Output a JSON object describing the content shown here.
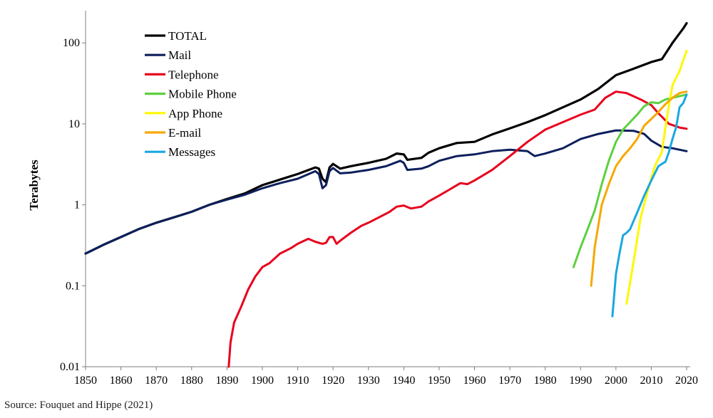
{
  "source": "Source: Fouquet and Hippe (2021)",
  "chart_data": {
    "type": "line",
    "title": "",
    "xlabel": "",
    "ylabel": "Terabytes",
    "yscale": "log",
    "xlim": [
      1850,
      2021
    ],
    "ylim": [
      0.01,
      250
    ],
    "x_ticks": [
      "1850",
      "1860",
      "1870",
      "1880",
      "1890",
      "1900",
      "1910",
      "1920",
      "1930",
      "1940",
      "1950",
      "1960",
      "1970",
      "1980",
      "1990",
      "2000",
      "2010",
      "2020"
    ],
    "y_ticks": [
      "0.01",
      "0.1",
      "1",
      "10",
      "100"
    ],
    "legend_position": "top-left",
    "grid": false,
    "series": [
      {
        "name": "TOTAL",
        "color": "#000000",
        "points": [
          [
            1850,
            0.25
          ],
          [
            1855,
            0.32
          ],
          [
            1860,
            0.4
          ],
          [
            1865,
            0.5
          ],
          [
            1870,
            0.6
          ],
          [
            1875,
            0.7
          ],
          [
            1880,
            0.82
          ],
          [
            1885,
            1.0
          ],
          [
            1890,
            1.18
          ],
          [
            1895,
            1.38
          ],
          [
            1900,
            1.75
          ],
          [
            1905,
            2.05
          ],
          [
            1910,
            2.4
          ],
          [
            1915,
            2.9
          ],
          [
            1916,
            2.8
          ],
          [
            1917,
            2.1
          ],
          [
            1918,
            1.9
          ],
          [
            1919,
            2.9
          ],
          [
            1920,
            3.2
          ],
          [
            1922,
            2.8
          ],
          [
            1925,
            3.0
          ],
          [
            1930,
            3.3
          ],
          [
            1935,
            3.7
          ],
          [
            1938,
            4.3
          ],
          [
            1940,
            4.2
          ],
          [
            1941,
            3.6
          ],
          [
            1945,
            3.8
          ],
          [
            1947,
            4.4
          ],
          [
            1950,
            5.0
          ],
          [
            1955,
            5.8
          ],
          [
            1960,
            6.0
          ],
          [
            1965,
            7.4
          ],
          [
            1970,
            8.8
          ],
          [
            1975,
            10.5
          ],
          [
            1980,
            12.8
          ],
          [
            1985,
            16.0
          ],
          [
            1990,
            20.0
          ],
          [
            1995,
            27.0
          ],
          [
            2000,
            40.0
          ],
          [
            2005,
            48.0
          ],
          [
            2010,
            58.0
          ],
          [
            2013,
            63.0
          ],
          [
            2016,
            100.0
          ],
          [
            2019,
            150.0
          ],
          [
            2020,
            175.0
          ]
        ]
      },
      {
        "name": "Mail",
        "color": "#0d1f5c",
        "points": [
          [
            1850,
            0.25
          ],
          [
            1855,
            0.32
          ],
          [
            1860,
            0.4
          ],
          [
            1865,
            0.5
          ],
          [
            1870,
            0.6
          ],
          [
            1875,
            0.7
          ],
          [
            1880,
            0.82
          ],
          [
            1885,
            1.0
          ],
          [
            1890,
            1.16
          ],
          [
            1895,
            1.33
          ],
          [
            1900,
            1.6
          ],
          [
            1905,
            1.85
          ],
          [
            1910,
            2.1
          ],
          [
            1915,
            2.6
          ],
          [
            1916,
            2.4
          ],
          [
            1917,
            1.6
          ],
          [
            1918,
            1.75
          ],
          [
            1919,
            2.6
          ],
          [
            1920,
            2.85
          ],
          [
            1922,
            2.45
          ],
          [
            1925,
            2.5
          ],
          [
            1930,
            2.7
          ],
          [
            1935,
            3.0
          ],
          [
            1939,
            3.5
          ],
          [
            1940,
            3.3
          ],
          [
            1941,
            2.7
          ],
          [
            1945,
            2.8
          ],
          [
            1947,
            3.0
          ],
          [
            1950,
            3.5
          ],
          [
            1955,
            4.0
          ],
          [
            1960,
            4.2
          ],
          [
            1965,
            4.6
          ],
          [
            1970,
            4.8
          ],
          [
            1975,
            4.6
          ],
          [
            1977,
            4.0
          ],
          [
            1980,
            4.3
          ],
          [
            1985,
            5.0
          ],
          [
            1990,
            6.5
          ],
          [
            1995,
            7.5
          ],
          [
            2000,
            8.3
          ],
          [
            2005,
            8.2
          ],
          [
            2008,
            7.5
          ],
          [
            2010,
            6.2
          ],
          [
            2013,
            5.2
          ],
          [
            2016,
            5.0
          ],
          [
            2020,
            4.6
          ]
        ]
      },
      {
        "name": "Telephone",
        "color": "#e8001c",
        "points": [
          [
            1890.5,
            0.01
          ],
          [
            1891,
            0.02
          ],
          [
            1892,
            0.035
          ],
          [
            1894,
            0.055
          ],
          [
            1896,
            0.09
          ],
          [
            1898,
            0.13
          ],
          [
            1900,
            0.17
          ],
          [
            1902,
            0.19
          ],
          [
            1905,
            0.25
          ],
          [
            1908,
            0.29
          ],
          [
            1910,
            0.33
          ],
          [
            1913,
            0.38
          ],
          [
            1915,
            0.35
          ],
          [
            1917,
            0.33
          ],
          [
            1918,
            0.34
          ],
          [
            1919,
            0.4
          ],
          [
            1920,
            0.4
          ],
          [
            1921,
            0.33
          ],
          [
            1922,
            0.36
          ],
          [
            1925,
            0.45
          ],
          [
            1928,
            0.55
          ],
          [
            1930,
            0.6
          ],
          [
            1933,
            0.7
          ],
          [
            1936,
            0.82
          ],
          [
            1938,
            0.95
          ],
          [
            1940,
            0.98
          ],
          [
            1942,
            0.9
          ],
          [
            1945,
            0.95
          ],
          [
            1947,
            1.1
          ],
          [
            1950,
            1.3
          ],
          [
            1953,
            1.55
          ],
          [
            1956,
            1.85
          ],
          [
            1958,
            1.8
          ],
          [
            1960,
            2.0
          ],
          [
            1965,
            2.7
          ],
          [
            1970,
            4.0
          ],
          [
            1975,
            6.0
          ],
          [
            1980,
            8.5
          ],
          [
            1985,
            10.5
          ],
          [
            1990,
            13.0
          ],
          [
            1994,
            15.0
          ],
          [
            1997,
            21.0
          ],
          [
            2000,
            25.0
          ],
          [
            2003,
            24.0
          ],
          [
            2007,
            20.0
          ],
          [
            2010,
            17.0
          ],
          [
            2012,
            13.5
          ],
          [
            2015,
            10.0
          ],
          [
            2018,
            9.0
          ],
          [
            2020,
            8.7
          ]
        ]
      },
      {
        "name": "Mobile Phone",
        "color": "#5dd040",
        "points": [
          [
            1988,
            0.17
          ],
          [
            1990,
            0.3
          ],
          [
            1992,
            0.5
          ],
          [
            1994,
            0.85
          ],
          [
            1996,
            1.8
          ],
          [
            1998,
            3.5
          ],
          [
            2000,
            6.0
          ],
          [
            2002,
            8.5
          ],
          [
            2004,
            10.5
          ],
          [
            2006,
            13.0
          ],
          [
            2008,
            16.5
          ],
          [
            2010,
            18.5
          ],
          [
            2012,
            18.0
          ],
          [
            2014,
            20.0
          ],
          [
            2016,
            21.0
          ],
          [
            2018,
            22.0
          ],
          [
            2020,
            23.0
          ]
        ]
      },
      {
        "name": "App Phone",
        "color": "#fff700",
        "points": [
          [
            2003,
            0.06
          ],
          [
            2005,
            0.2
          ],
          [
            2007,
            0.7
          ],
          [
            2009,
            1.5
          ],
          [
            2011,
            3.0
          ],
          [
            2013,
            4.5
          ],
          [
            2014,
            9.0
          ],
          [
            2015,
            17.0
          ],
          [
            2016,
            30.0
          ],
          [
            2018,
            45.0
          ],
          [
            2020,
            80.0
          ]
        ]
      },
      {
        "name": "E-mail",
        "color": "#f5a800",
        "points": [
          [
            1993,
            0.1
          ],
          [
            1994,
            0.3
          ],
          [
            1996,
            1.0
          ],
          [
            1998,
            1.8
          ],
          [
            2000,
            3.0
          ],
          [
            2002,
            4.0
          ],
          [
            2004,
            5.0
          ],
          [
            2006,
            6.5
          ],
          [
            2008,
            9.5
          ],
          [
            2010,
            11.5
          ],
          [
            2012,
            14.0
          ],
          [
            2014,
            17.5
          ],
          [
            2016,
            21.0
          ],
          [
            2018,
            24.0
          ],
          [
            2020,
            25.0
          ]
        ]
      },
      {
        "name": "Messages",
        "color": "#1aa8e0",
        "points": [
          [
            1999,
            0.042
          ],
          [
            2000,
            0.14
          ],
          [
            2001,
            0.25
          ],
          [
            2002,
            0.42
          ],
          [
            2003,
            0.45
          ],
          [
            2004,
            0.5
          ],
          [
            2006,
            0.8
          ],
          [
            2008,
            1.3
          ],
          [
            2010,
            2.0
          ],
          [
            2012,
            3.0
          ],
          [
            2013,
            3.2
          ],
          [
            2014,
            3.4
          ],
          [
            2015,
            4.5
          ],
          [
            2016,
            6.5
          ],
          [
            2017,
            9.0
          ],
          [
            2018,
            16.0
          ],
          [
            2019,
            18.0
          ],
          [
            2020,
            23.0
          ]
        ]
      }
    ]
  }
}
